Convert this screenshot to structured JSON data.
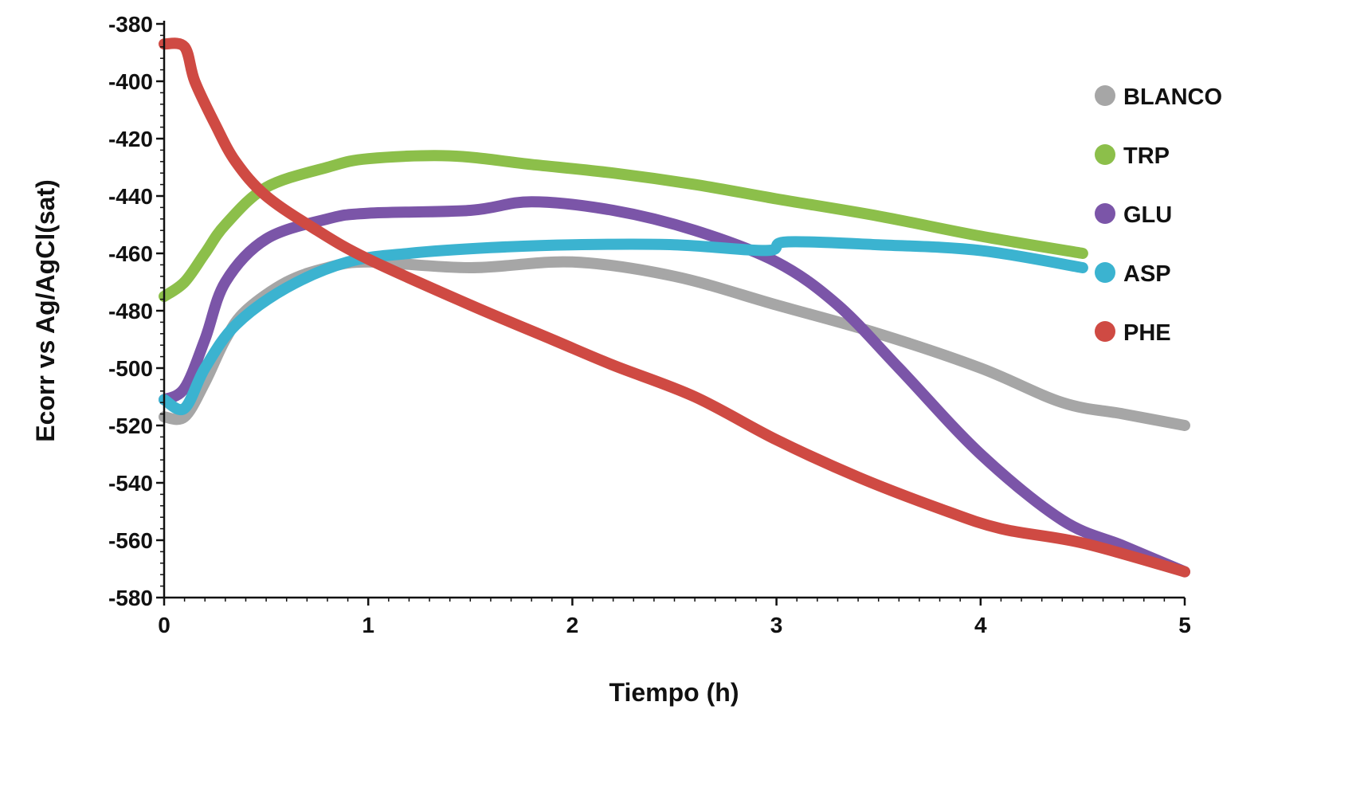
{
  "chart_data": {
    "type": "line",
    "title": "",
    "xlabel": "Tiempo (h)",
    "ylabel": "Ecorr vs Ag/AgCl(sat)",
    "xlim": [
      0,
      5
    ],
    "ylim": [
      -580,
      -380
    ],
    "xticks": [
      0,
      1,
      2,
      3,
      4,
      5
    ],
    "yticks": [
      -380,
      -400,
      -420,
      -440,
      -460,
      -480,
      -500,
      -520,
      -540,
      -560,
      -580
    ],
    "grid": false,
    "legend_position": "right",
    "series": [
      {
        "name": "BLANCO",
        "color": "#a6a6a6",
        "x": [
          0,
          0.1,
          0.2,
          0.3,
          0.4,
          0.6,
          0.8,
          1.0,
          1.5,
          2.0,
          2.5,
          3.0,
          3.5,
          4.0,
          4.4,
          4.7,
          5.0
        ],
        "y": [
          -517,
          -517,
          -505,
          -490,
          -480,
          -470,
          -465,
          -463,
          -465,
          -463,
          -468,
          -478,
          -488,
          -500,
          -512,
          -516,
          -520
        ]
      },
      {
        "name": "TRP",
        "color": "#8cbf4a",
        "x": [
          0,
          0.1,
          0.2,
          0.3,
          0.5,
          0.8,
          1.0,
          1.4,
          1.8,
          2.2,
          2.6,
          3.0,
          3.5,
          4.0,
          4.5
        ],
        "y": [
          -475,
          -470,
          -460,
          -450,
          -437,
          -430,
          -427,
          -426,
          -429,
          -432,
          -436,
          -441,
          -447,
          -454,
          -460
        ]
      },
      {
        "name": "GLU",
        "color": "#7b55a8",
        "x": [
          0,
          0.1,
          0.2,
          0.3,
          0.5,
          0.8,
          1.0,
          1.5,
          1.8,
          2.2,
          2.6,
          3.0,
          3.3,
          3.6,
          4.0,
          4.4,
          4.7,
          5.0
        ],
        "y": [
          -511,
          -507,
          -490,
          -470,
          -455,
          -448,
          -446,
          -445,
          -442,
          -445,
          -452,
          -463,
          -478,
          -500,
          -530,
          -553,
          -562,
          -571
        ]
      },
      {
        "name": "ASP",
        "color": "#3bb3d0",
        "x": [
          0,
          0.1,
          0.2,
          0.35,
          0.6,
          0.9,
          1.2,
          1.6,
          2.0,
          2.5,
          2.95,
          3.05,
          3.5,
          4.0,
          4.5
        ],
        "y": [
          -511,
          -514,
          -500,
          -485,
          -472,
          -463,
          -460,
          -458,
          -457,
          -457,
          -459,
          -456,
          -457,
          -459,
          -465
        ]
      },
      {
        "name": "PHE",
        "color": "#cf4a43",
        "x": [
          0,
          0.1,
          0.15,
          0.25,
          0.35,
          0.5,
          0.75,
          1.0,
          1.5,
          1.9,
          2.2,
          2.6,
          3.0,
          3.4,
          3.8,
          4.1,
          4.5,
          5.0
        ],
        "y": [
          -387,
          -388,
          -400,
          -415,
          -428,
          -440,
          -452,
          -462,
          -478,
          -490,
          -499,
          -510,
          -525,
          -538,
          -549,
          -556,
          -561,
          -571
        ]
      }
    ]
  }
}
